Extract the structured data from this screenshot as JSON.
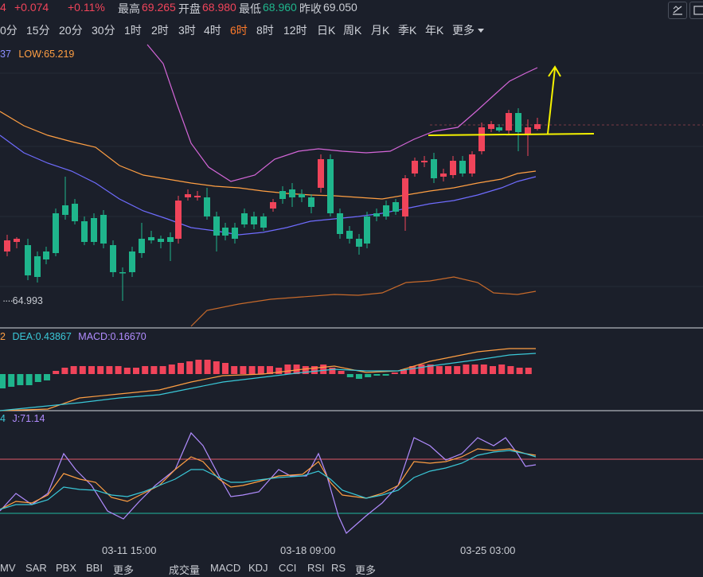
{
  "header": {
    "change_abs": "+0.074",
    "change_pct": "+0.11%",
    "high_label": "最高",
    "high_value": "69.265",
    "open_label": "开盘",
    "open_value": "68.980",
    "low_label": "最低",
    "low_value": "68.960",
    "prev_close_label": "昨收",
    "prev_close_value": "69.050"
  },
  "timeframes": [
    "0分",
    "15分",
    "20分",
    "30分",
    "1时",
    "2时",
    "3时",
    "4时",
    "6时",
    "8时",
    "12时",
    "日K",
    "周K",
    "月K",
    "季K",
    "年K",
    "更多"
  ],
  "active_timeframe": "6时",
  "main_legend": {
    "prefix": "37",
    "low_label": "LOW:65.219"
  },
  "price_marker": "64.993",
  "macd_legend": {
    "prefix": "2",
    "dea": "DEA:0.43867",
    "macd": "MACD:0.16670"
  },
  "kdj_legend": {
    "prefix": "4",
    "j": "J:71.14"
  },
  "x_axis": [
    "03-11 15:00",
    "03-18 09:00",
    "03-25 03:00"
  ],
  "footer_left": [
    "MV",
    "SAR",
    "PBX",
    "BBI",
    "更多"
  ],
  "footer_right": [
    "成交量",
    "MACD",
    "KDJ",
    "CCI",
    "RSI",
    "RS",
    "更多"
  ],
  "colors": {
    "up": "#f0445a",
    "down": "#1fb58c",
    "accent": "#ff7a2a",
    "annotation": "#f5f200"
  },
  "icons": [
    "chart-settings-icon",
    "chevron-down-icon"
  ]
}
